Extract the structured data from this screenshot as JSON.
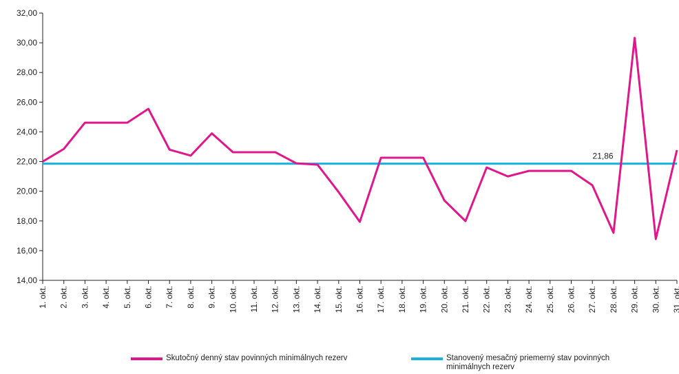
{
  "chart_data": {
    "type": "line",
    "categories": [
      "1. okt.",
      "2. okt.",
      "3. okt.",
      "4. okt.",
      "5. okt.",
      "6. okt.",
      "7. okt.",
      "8. okt.",
      "9. okt.",
      "10. okt.",
      "11. okt.",
      "12. okt.",
      "13. okt.",
      "14. okt.",
      "15. okt.",
      "16. okt.",
      "17. okt.",
      "18. okt.",
      "19. okt.",
      "20. okt.",
      "21. okt.",
      "22. okt.",
      "23. okt.",
      "24. okt.",
      "25. okt.",
      "26. okt.",
      "27. okt.",
      "28. okt.",
      "29. okt.",
      "30. okt.",
      "31. okt."
    ],
    "series": [
      {
        "name": "Skutočný denný stav povinných minimálnych rezerv",
        "color": "#e0168a",
        "values": [
          22.0,
          22.85,
          24.62,
          24.62,
          24.62,
          25.55,
          22.8,
          22.4,
          23.9,
          22.63,
          22.63,
          22.63,
          21.88,
          21.79,
          19.94,
          17.94,
          22.26,
          22.26,
          22.26,
          19.38,
          17.99,
          21.6,
          21.0,
          21.37,
          21.37,
          21.37,
          20.4,
          17.2,
          30.33,
          16.78,
          22.77
        ]
      },
      {
        "name": "Stanovený mesačný priemerný stav povinných minimálnych rezerv",
        "color": "#1ab0e0",
        "values": [
          21.86,
          21.86,
          21.86,
          21.86,
          21.86,
          21.86,
          21.86,
          21.86,
          21.86,
          21.86,
          21.86,
          21.86,
          21.86,
          21.86,
          21.86,
          21.86,
          21.86,
          21.86,
          21.86,
          21.86,
          21.86,
          21.86,
          21.86,
          21.86,
          21.86,
          21.86,
          21.86,
          21.86,
          21.86,
          21.86,
          21.86
        ]
      }
    ],
    "annotations": [
      {
        "value": 21.86,
        "label": "21,86"
      }
    ],
    "ylim": [
      14,
      32
    ],
    "yticks": [
      {
        "value": 14,
        "label": "14,00"
      },
      {
        "value": 16,
        "label": "16,00"
      },
      {
        "value": 18,
        "label": "18,00"
      },
      {
        "value": 20,
        "label": "20,00"
      },
      {
        "value": 22,
        "label": "22,00"
      },
      {
        "value": 24,
        "label": "24,00"
      },
      {
        "value": 26,
        "label": "26,00"
      },
      {
        "value": 28,
        "label": "28,00"
      },
      {
        "value": 30,
        "label": "30,00"
      },
      {
        "value": 32,
        "label": "32,00"
      }
    ],
    "grid": false,
    "legend": "bottom"
  }
}
